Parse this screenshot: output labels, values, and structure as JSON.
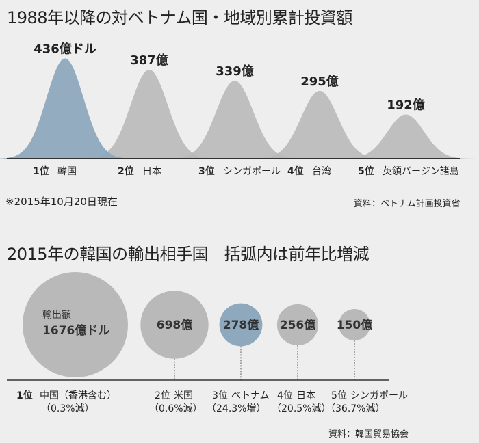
{
  "colors": {
    "highlight": "#8ea8bd",
    "shape": "#b9b9b9",
    "background": "#eeeeee",
    "axis": "#333333"
  },
  "chart_data": [
    {
      "type": "area",
      "title": "1988年以降の対ベトナム国・地域別累計投資額",
      "unit": "億ドル",
      "categories": [
        "韓国",
        "日本",
        "シンガポール",
        "台湾",
        "英領バージン諸島"
      ],
      "ranks": [
        "1位",
        "2位",
        "3位",
        "4位",
        "5位"
      ],
      "values": [
        436,
        387,
        339,
        295,
        192
      ],
      "value_labels": [
        "436億ドル",
        "387億",
        "339億",
        "295億",
        "192億"
      ],
      "highlight_index": 0,
      "note": "※2015年10月20日現在",
      "source": "資料：ベトナム計画投資省"
    },
    {
      "type": "bubble",
      "title": "2015年の韓国の輸出相手国　括弧内は前年比増減",
      "unit": "億ドル",
      "bubble_caption": "輸出額",
      "categories": [
        "中国（香港含む）",
        "米国",
        "ベトナム",
        "日本",
        "シンガポール"
      ],
      "ranks": [
        "1位",
        "2位",
        "3位",
        "4位",
        "5位"
      ],
      "values": [
        1676,
        698,
        278,
        256,
        150
      ],
      "value_labels": [
        "1676億ドル",
        "698億",
        "278億",
        "256億",
        "150億"
      ],
      "changes": [
        "（0.3%減）",
        "（0.6%減）",
        "（24.3%増）",
        "（20.5%減）",
        "（36.7%減）"
      ],
      "highlight_index": 2,
      "source": "資料：韓国貿易協会"
    }
  ]
}
